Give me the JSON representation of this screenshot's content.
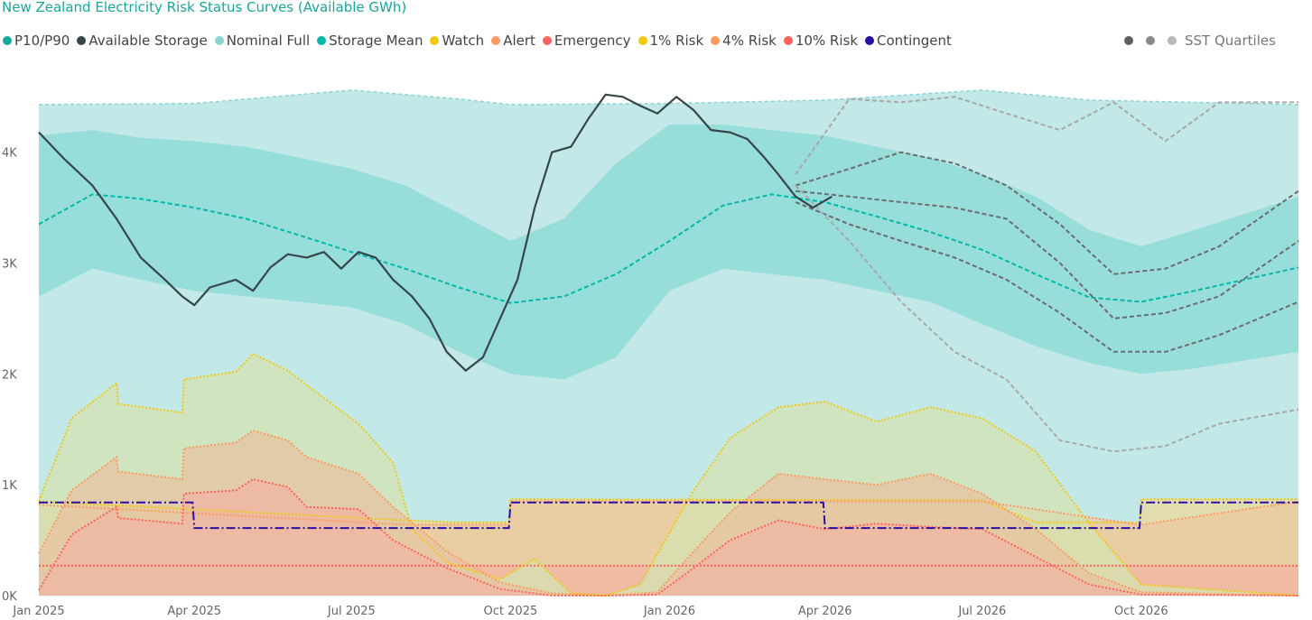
{
  "chart_data": {
    "type": "area",
    "title": "New Zealand Electricity Risk Status Curves (Available GWh)",
    "legend": [
      {
        "label": "P10/P90",
        "color": "#1aa79b"
      },
      {
        "label": "Available Storage",
        "color": "#374649"
      },
      {
        "label": "Nominal Full",
        "color": "#8ad4d4"
      },
      {
        "label": "Storage Mean",
        "color": "#01b8aa"
      },
      {
        "label": "Watch",
        "color": "#f2c80f"
      },
      {
        "label": "Alert",
        "color": "#fd9a61"
      },
      {
        "label": "Emergency",
        "color": "#fd625e"
      },
      {
        "label": "1% Risk",
        "color": "#f2c80f"
      },
      {
        "label": "4% Risk",
        "color": "#fd9a61"
      },
      {
        "label": "10% Risk",
        "color": "#fd625e"
      },
      {
        "label": "Contingent",
        "color": "#2b0fa3"
      }
    ],
    "sst_legend": {
      "label": "SST Quartiles",
      "colors": [
        "#5f5f5f",
        "#8a8a8a",
        "#b8b8b8"
      ]
    },
    "legend_position": "top",
    "x_axis": {
      "type": "date",
      "ticks": [
        "Jan 2025",
        "Apr 2025",
        "Jul 2025",
        "Oct 2025",
        "Jan 2026",
        "Apr 2026",
        "Jul 2026",
        "Oct 2026"
      ],
      "range": [
        "2025-01-01",
        "2026-12-31"
      ]
    },
    "y_axis": {
      "ticks": [
        "0K",
        "1K",
        "2K",
        "3K",
        "4K"
      ],
      "range": [
        0,
        4600
      ],
      "grid": true
    },
    "nominal_full": {
      "x": [
        "2025-01-01",
        "2025-04-01",
        "2025-07-01",
        "2025-09-01",
        "2025-10-01",
        "2026-01-01",
        "2026-04-01",
        "2026-07-01",
        "2026-09-01",
        "2026-12-31"
      ],
      "y": [
        4430,
        4440,
        4560,
        4480,
        4430,
        4440,
        4470,
        4560,
        4470,
        4430
      ]
    },
    "p10_p90": {
      "x": [
        "2025-01-01",
        "2025-02-01",
        "2025-03-01",
        "2025-04-01",
        "2025-05-01",
        "2025-06-01",
        "2025-07-01",
        "2025-08-01",
        "2025-09-01",
        "2025-10-01",
        "2025-11-01",
        "2025-12-01",
        "2026-01-01",
        "2026-02-01",
        "2026-03-01",
        "2026-04-01",
        "2026-05-01",
        "2026-06-01",
        "2026-07-01",
        "2026-08-01",
        "2026-09-01",
        "2026-10-01",
        "2026-11-01",
        "2026-12-31"
      ],
      "p90": [
        4150,
        4200,
        4130,
        4100,
        4050,
        3950,
        3850,
        3700,
        3450,
        3200,
        3400,
        3900,
        4250,
        4250,
        4200,
        4150,
        4050,
        3950,
        3800,
        3600,
        3300,
        3150,
        3300,
        3600
      ],
      "p10": [
        2700,
        2950,
        2850,
        2750,
        2700,
        2650,
        2600,
        2450,
        2200,
        2000,
        1950,
        2150,
        2750,
        2950,
        2900,
        2850,
        2750,
        2650,
        2450,
        2250,
        2100,
        2000,
        2050,
        2200
      ]
    },
    "storage_mean": {
      "x": [
        "2025-01-01",
        "2025-02-01",
        "2025-03-01",
        "2025-04-01",
        "2025-05-01",
        "2025-06-01",
        "2025-07-01",
        "2025-08-01",
        "2025-09-01",
        "2025-10-01",
        "2025-11-01",
        "2025-12-01",
        "2026-01-01",
        "2026-02-01",
        "2026-03-01",
        "2026-04-01",
        "2026-05-01",
        "2026-06-01",
        "2026-07-01",
        "2026-08-01",
        "2026-09-01",
        "2026-10-01",
        "2026-11-01",
        "2026-12-31"
      ],
      "y": [
        3350,
        3620,
        3580,
        3500,
        3400,
        3250,
        3100,
        2950,
        2780,
        2640,
        2700,
        2900,
        3200,
        3520,
        3620,
        3550,
        3420,
        3280,
        3120,
        2900,
        2690,
        2650,
        2750,
        2960
      ]
    },
    "available_storage": {
      "x": [
        "2025-01-01",
        "2025-01-15",
        "2025-02-01",
        "2025-02-15",
        "2025-03-01",
        "2025-03-15",
        "2025-03-25",
        "2025-04-01",
        "2025-04-10",
        "2025-04-25",
        "2025-05-05",
        "2025-05-15",
        "2025-05-25",
        "2025-06-05",
        "2025-06-15",
        "2025-06-25",
        "2025-07-05",
        "2025-07-15",
        "2025-07-25",
        "2025-08-05",
        "2025-08-15",
        "2025-08-25",
        "2025-09-05",
        "2025-09-15",
        "2025-09-25",
        "2025-10-05",
        "2025-10-15",
        "2025-10-25",
        "2025-11-05",
        "2025-11-15",
        "2025-11-25",
        "2025-12-05",
        "2025-12-15",
        "2025-12-25",
        "2026-01-05",
        "2026-01-15",
        "2026-01-25",
        "2026-02-05",
        "2026-02-15",
        "2026-02-25",
        "2026-03-05",
        "2026-03-15",
        "2026-03-25",
        "2026-04-05"
      ],
      "y": [
        4180,
        3950,
        3700,
        3400,
        3050,
        2850,
        2700,
        2620,
        2780,
        2850,
        2750,
        2960,
        3080,
        3050,
        3100,
        2950,
        3100,
        3050,
        2850,
        2700,
        2500,
        2200,
        2030,
        2150,
        2500,
        2850,
        3500,
        4000,
        4050,
        4300,
        4520,
        4500,
        4420,
        4350,
        4500,
        4380,
        4200,
        4180,
        4120,
        3950,
        3800,
        3600,
        3500,
        3600
      ]
    },
    "sst_quartiles": [
      {
        "name": "",
        "x": [
          "2026-03-15",
          "2026-04-15",
          "2026-05-15",
          "2026-06-15",
          "2026-07-15",
          "2026-08-15",
          "2026-09-15",
          "2026-10-15",
          "2026-11-15",
          "2026-12-31"
        ],
        "y": [
          3800,
          4480,
          4450,
          4500,
          4350,
          4200,
          4450,
          4100,
          4450,
          4450
        ]
      },
      {
        "name": "",
        "x": [
          "2026-03-15",
          "2026-04-15",
          "2026-05-15",
          "2026-06-15",
          "2026-07-15",
          "2026-08-15",
          "2026-09-15",
          "2026-10-15",
          "2026-11-15",
          "2026-12-31"
        ],
        "y": [
          3700,
          3850,
          4000,
          3900,
          3700,
          3350,
          2900,
          2950,
          3150,
          3650
        ]
      },
      {
        "name": "",
        "x": [
          "2026-03-15",
          "2026-04-15",
          "2026-05-15",
          "2026-06-15",
          "2026-07-15",
          "2026-08-15",
          "2026-09-15",
          "2026-10-15",
          "2026-11-15",
          "2026-12-31"
        ],
        "y": [
          3650,
          3600,
          3550,
          3500,
          3400,
          3000,
          2500,
          2550,
          2700,
          3200
        ]
      },
      {
        "name": "",
        "x": [
          "2026-03-15",
          "2026-04-15",
          "2026-05-15",
          "2026-06-15",
          "2026-07-15",
          "2026-08-15",
          "2026-09-15",
          "2026-10-15",
          "2026-11-15",
          "2026-12-31"
        ],
        "y": [
          3550,
          3350,
          3200,
          3050,
          2850,
          2550,
          2200,
          2200,
          2350,
          2650
        ]
      },
      {
        "name": "",
        "x": [
          "2026-03-15",
          "2026-04-15",
          "2026-05-15",
          "2026-06-15",
          "2026-07-15",
          "2026-08-15",
          "2026-09-15",
          "2026-10-15",
          "2026-11-15",
          "2026-12-31"
        ],
        "y": [
          3700,
          3200,
          2650,
          2200,
          1950,
          1400,
          1300,
          1350,
          1550,
          1680
        ]
      }
    ],
    "risk_1pct": {
      "x": [
        "2025-01-01",
        "2025-01-20",
        "2025-02-15",
        "2025-02-16",
        "2025-03-25",
        "2025-03-26",
        "2025-04-25",
        "2025-05-05",
        "2025-05-25",
        "2025-06-05",
        "2025-07-05",
        "2025-07-25",
        "2025-08-05",
        "2025-08-25",
        "2025-09-25",
        "2025-10-15",
        "2025-11-05",
        "2025-11-25",
        "2025-12-15",
        "2026-01-15",
        "2026-02-05",
        "2026-03-05",
        "2026-04-01",
        "2026-05-01",
        "2026-06-01",
        "2026-07-01",
        "2026-08-01",
        "2026-09-01",
        "2026-10-01",
        "2026-12-31"
      ],
      "y": [
        850,
        1600,
        1920,
        1730,
        1650,
        1950,
        2020,
        2180,
        2030,
        1900,
        1550,
        1200,
        600,
        300,
        150,
        330,
        20,
        0,
        100,
        950,
        1420,
        1700,
        1750,
        1570,
        1700,
        1600,
        1300,
        650,
        100,
        0
      ]
    },
    "risk_4pct": {
      "x": [
        "2025-01-01",
        "2025-01-20",
        "2025-02-15",
        "2025-02-16",
        "2025-03-25",
        "2025-03-26",
        "2025-04-25",
        "2025-05-05",
        "2025-05-25",
        "2025-06-05",
        "2025-07-05",
        "2025-07-25",
        "2025-08-25",
        "2025-09-25",
        "2025-10-25",
        "2025-11-25",
        "2025-12-25",
        "2026-01-15",
        "2026-02-05",
        "2026-03-05",
        "2026-04-01",
        "2026-05-01",
        "2026-06-01",
        "2026-07-01",
        "2026-08-01",
        "2026-09-01",
        "2026-10-01",
        "2026-12-31"
      ],
      "y": [
        380,
        950,
        1250,
        1120,
        1050,
        1330,
        1380,
        1490,
        1400,
        1250,
        1100,
        800,
        400,
        120,
        20,
        0,
        30,
        400,
        750,
        1100,
        1050,
        1000,
        1100,
        920,
        600,
        200,
        30,
        0
      ]
    },
    "risk_10pct": {
      "x": [
        "2025-01-01",
        "2025-01-20",
        "2025-02-15",
        "2025-02-16",
        "2025-03-25",
        "2025-03-26",
        "2025-04-25",
        "2025-05-05",
        "2025-05-25",
        "2025-06-05",
        "2025-07-05",
        "2025-07-25",
        "2025-08-25",
        "2025-09-25",
        "2025-10-25",
        "2025-11-25",
        "2025-12-25",
        "2026-01-15",
        "2026-02-05",
        "2026-03-05",
        "2026-04-01",
        "2026-05-01",
        "2026-06-01",
        "2026-07-01",
        "2026-08-01",
        "2026-09-01",
        "2026-10-01",
        "2026-12-31"
      ],
      "y": [
        50,
        550,
        800,
        700,
        650,
        920,
        950,
        1050,
        980,
        800,
        780,
        500,
        250,
        60,
        0,
        0,
        10,
        250,
        500,
        680,
        600,
        650,
        620,
        600,
        350,
        100,
        10,
        0
      ]
    },
    "watch_level": {
      "x": [
        "2025-01-01",
        "2025-08-01",
        "2025-09-01",
        "2025-09-30",
        "2025-10-01",
        "2026-07-01",
        "2026-08-01",
        "2026-09-30",
        "2026-10-01",
        "2026-12-31"
      ],
      "y": [
        850,
        680,
        660,
        660,
        870,
        860,
        660,
        660,
        870,
        870
      ]
    },
    "alert_level": {
      "x": [
        "2025-01-01",
        "2025-08-01",
        "2025-09-30",
        "2025-10-01",
        "2026-07-01",
        "2026-09-30",
        "2026-10-01",
        "2026-12-31"
      ],
      "y": [
        820,
        640,
        640,
        850,
        850,
        640,
        640,
        850
      ]
    },
    "emergency_level": {
      "x": [
        "2025-01-01",
        "2026-12-31"
      ],
      "y": [
        270,
        270
      ]
    },
    "contingent": {
      "x": [
        "2025-01-01",
        "2025-03-31",
        "2025-04-01",
        "2025-09-30",
        "2025-10-01",
        "2026-03-31",
        "2026-04-01",
        "2026-09-30",
        "2026-10-01",
        "2026-12-31"
      ],
      "y": [
        840,
        840,
        610,
        610,
        840,
        840,
        610,
        610,
        840,
        840
      ]
    }
  }
}
